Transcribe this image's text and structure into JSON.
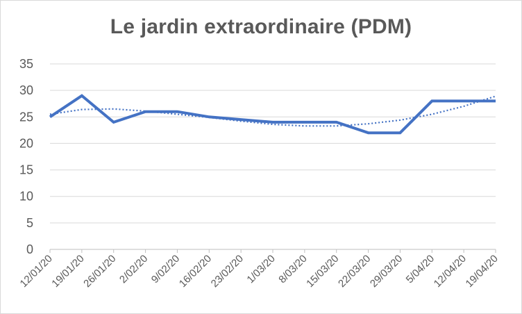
{
  "chart_data": {
    "type": "line",
    "title": "Le jardin extraordinaire (PDM)",
    "xlabel": "",
    "ylabel": "",
    "categories": [
      "12/01/20",
      "19/01/20",
      "26/01/20",
      "2/02/20",
      "9/02/20",
      "16/02/20",
      "23/02/20",
      "1/03/20",
      "8/03/20",
      "15/03/20",
      "22/03/20",
      "29/03/20",
      "5/04/20",
      "12/04/20",
      "19/04/20"
    ],
    "series": [
      {
        "values": [
          25,
          29,
          24,
          26,
          26,
          25,
          24.5,
          24,
          24,
          24,
          22,
          22,
          28,
          28,
          28
        ],
        "color": "#4472c4",
        "style": "solid"
      },
      {
        "values": [
          25.5,
          26.4,
          26.5,
          26.1,
          25.5,
          24.9,
          24.2,
          23.6,
          23.3,
          23.3,
          23.7,
          24.4,
          25.5,
          27,
          28.9
        ],
        "color": "#4472c4",
        "style": "dotted"
      }
    ],
    "yticks": [
      "0",
      "5",
      "10",
      "15",
      "20",
      "25",
      "30",
      "35"
    ],
    "ylim": [
      0,
      35
    ],
    "grid": "horizontal",
    "legend": "none"
  }
}
